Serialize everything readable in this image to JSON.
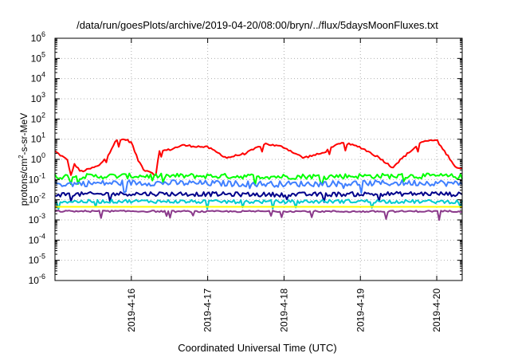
{
  "chart_data": {
    "type": "line",
    "title": "/data/run/goesPlots/archive/2019-04-20/08:00/bryn/../flux/5daysMoonFluxes.txt",
    "xlabel": "Coordinated Universal Time (UTC)",
    "ylabel": {
      "prefix": "protons/cm",
      "sup": "2",
      "suffix": "-s-sr-MeV"
    },
    "y_scale": "log",
    "ylim": [
      1e-06,
      1000000.0
    ],
    "y_ticks": [
      {
        "base": "10",
        "exp": "-6"
      },
      {
        "base": "10",
        "exp": "-5"
      },
      {
        "base": "10",
        "exp": "-4"
      },
      {
        "base": "10",
        "exp": "-3"
      },
      {
        "base": "10",
        "exp": "-2"
      },
      {
        "base": "10",
        "exp": "-1"
      },
      {
        "base": "10",
        "exp": "0"
      },
      {
        "base": "10",
        "exp": "1"
      },
      {
        "base": "10",
        "exp": "2"
      },
      {
        "base": "10",
        "exp": "3"
      },
      {
        "base": "10",
        "exp": "4"
      },
      {
        "base": "10",
        "exp": "5"
      },
      {
        "base": "10",
        "exp": "6"
      }
    ],
    "xlim": [
      "2019-04-15 00:00",
      "2019-04-20 08:00"
    ],
    "x_ticks": [
      "2019-4-16",
      "2019-4-17",
      "2019-4-18",
      "2019-4-19",
      "2019-4-20"
    ],
    "grid": true,
    "legend": "none",
    "series": [
      {
        "color": "#ff0000",
        "x": [
          "2019-04-15 00:00",
          "2019-04-15 04:00",
          "2019-04-15 05:00",
          "2019-04-15 06:00",
          "2019-04-15 08:00",
          "2019-04-15 10:00",
          "2019-04-15 14:00",
          "2019-04-15 17:00",
          "2019-04-15 19:00",
          "2019-04-15 22:00",
          "2019-04-16 00:00",
          "2019-04-16 02:00",
          "2019-04-16 04:00",
          "2019-04-16 06:00",
          "2019-04-16 08:00",
          "2019-04-16 08:30",
          "2019-04-16 12:00",
          "2019-04-16 16:00",
          "2019-04-17 00:00",
          "2019-04-17 06:00",
          "2019-04-17 12:00",
          "2019-04-17 18:00",
          "2019-04-18 00:00",
          "2019-04-18 06:00",
          "2019-04-18 12:00",
          "2019-04-18 18:00",
          "2019-04-19 00:00",
          "2019-04-19 06:00",
          "2019-04-19 10:00",
          "2019-04-19 14:00",
          "2019-04-19 18:00",
          "2019-04-19 20:00",
          "2019-04-20 00:00",
          "2019-04-20 02:00",
          "2019-04-20 04:00",
          "2019-04-20 06:00",
          "2019-04-20 08:00"
        ],
        "y": [
          2.5,
          0.9,
          0.15,
          0.6,
          0.25,
          0.3,
          0.5,
          2,
          8,
          10,
          7,
          1,
          0.3,
          0.25,
          0.15,
          2.5,
          3,
          5,
          4,
          1.2,
          2,
          6,
          4,
          1.2,
          2,
          7,
          4,
          1.2,
          0.4,
          1.5,
          5,
          8,
          9,
          3,
          1.2,
          0.4,
          0.35
        ]
      },
      {
        "color": "#00ff00",
        "x": [
          "2019-04-15 00:00",
          "2019-04-16 00:00",
          "2019-04-17 00:00",
          "2019-04-18 00:00",
          "2019-04-19 00:00",
          "2019-04-20 00:00",
          "2019-04-20 08:00"
        ],
        "y": [
          0.14,
          0.15,
          0.15,
          0.14,
          0.15,
          0.15,
          0.14
        ]
      },
      {
        "color": "#4080ff",
        "x": [
          "2019-04-15 00:00",
          "2019-04-16 00:00",
          "2019-04-17 00:00",
          "2019-04-18 00:00",
          "2019-04-19 00:00",
          "2019-04-20 00:00",
          "2019-04-20 08:00"
        ],
        "y": [
          0.06,
          0.07,
          0.065,
          0.06,
          0.065,
          0.07,
          0.06
        ]
      },
      {
        "color": "#00008b",
        "x": [
          "2019-04-15 00:00",
          "2019-04-16 00:00",
          "2019-04-17 00:00",
          "2019-04-18 00:00",
          "2019-04-19 00:00",
          "2019-04-20 00:00",
          "2019-04-20 08:00"
        ],
        "y": [
          0.018,
          0.02,
          0.019,
          0.018,
          0.019,
          0.02,
          0.018
        ]
      },
      {
        "color": "#00cccc",
        "x": [
          "2019-04-15 00:00",
          "2019-04-16 00:00",
          "2019-04-17 00:00",
          "2019-04-18 00:00",
          "2019-04-19 00:00",
          "2019-04-20 00:00",
          "2019-04-20 08:00"
        ],
        "y": [
          0.008,
          0.0085,
          0.008,
          0.008,
          0.0085,
          0.008,
          0.008
        ]
      },
      {
        "color": "#ffff00",
        "x": [
          "2019-04-15 00:00",
          "2019-04-20 08:00"
        ],
        "y": [
          0.0045,
          0.0045
        ]
      },
      {
        "color": "#8b3a8b",
        "x": [
          "2019-04-15 00:00",
          "2019-04-16 00:00",
          "2019-04-17 00:00",
          "2019-04-18 00:00",
          "2019-04-19 00:00",
          "2019-04-20 00:00",
          "2019-04-20 08:00"
        ],
        "y": [
          0.0027,
          0.0027,
          0.0026,
          0.0027,
          0.0026,
          0.0027,
          0.0027
        ]
      }
    ]
  }
}
